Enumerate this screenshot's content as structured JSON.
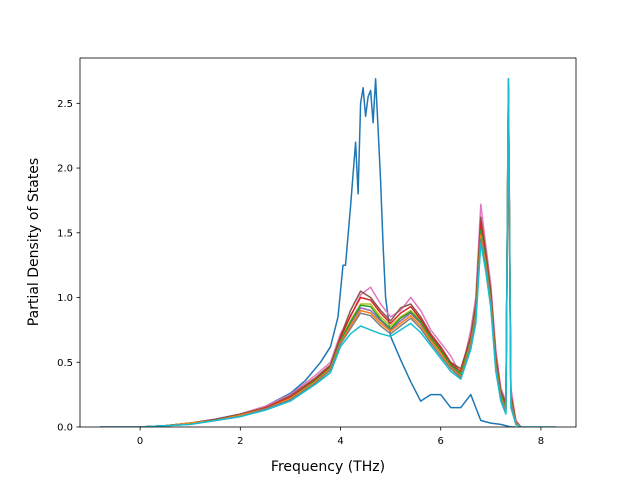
{
  "chart_data": {
    "type": "line",
    "title": "",
    "xlabel": "Frequency (THz)",
    "ylabel": "Partial Density of States",
    "xlim": [
      -1.2,
      8.7
    ],
    "ylim": [
      0,
      2.85
    ],
    "xticks": [
      0,
      2,
      4,
      6,
      8
    ],
    "yticks": [
      0.0,
      0.5,
      1.0,
      1.5,
      2.0,
      2.5
    ],
    "xtick_labels": [
      "0",
      "2",
      "4",
      "6",
      "8"
    ],
    "ytick_labels": [
      "0.0",
      "0.5",
      "1.0",
      "1.5",
      "2.0",
      "2.5"
    ],
    "grid": false,
    "legend": "none",
    "series": [
      {
        "color": "#1f77b4",
        "x": [
          -0.8,
          0.0,
          0.5,
          1.0,
          1.5,
          2.0,
          2.5,
          3.0,
          3.3,
          3.6,
          3.8,
          3.95,
          4.05,
          4.1,
          4.2,
          4.3,
          4.35,
          4.4,
          4.45,
          4.5,
          4.55,
          4.6,
          4.65,
          4.7,
          4.75,
          4.8,
          4.85,
          4.9,
          5.0,
          5.2,
          5.4,
          5.6,
          5.8,
          6.0,
          6.2,
          6.4,
          6.6,
          6.8,
          7.0,
          7.2,
          7.4,
          7.5
        ],
        "y": [
          0.0,
          0.0,
          0.01,
          0.03,
          0.06,
          0.1,
          0.16,
          0.26,
          0.36,
          0.5,
          0.62,
          0.85,
          1.25,
          1.25,
          1.7,
          2.2,
          1.8,
          2.5,
          2.62,
          2.4,
          2.55,
          2.6,
          2.35,
          2.69,
          2.3,
          1.9,
          1.4,
          1.0,
          0.7,
          0.52,
          0.35,
          0.2,
          0.25,
          0.25,
          0.15,
          0.15,
          0.25,
          0.05,
          0.03,
          0.02,
          0.0,
          0.0
        ]
      },
      {
        "color": "#e377c2",
        "x": [
          0.0,
          0.5,
          1.0,
          1.5,
          2.0,
          2.5,
          3.0,
          3.5,
          3.8,
          4.0,
          4.2,
          4.4,
          4.6,
          4.8,
          5.0,
          5.2,
          5.4,
          5.6,
          5.8,
          6.0,
          6.2,
          6.4,
          6.6,
          6.7,
          6.8,
          6.9,
          7.0,
          7.1,
          7.2,
          7.3,
          7.35,
          7.4,
          7.5,
          7.6
        ],
        "y": [
          0.0,
          0.01,
          0.03,
          0.06,
          0.1,
          0.16,
          0.25,
          0.4,
          0.5,
          0.72,
          0.85,
          1.02,
          1.08,
          0.95,
          0.85,
          0.9,
          1.0,
          0.9,
          0.75,
          0.65,
          0.55,
          0.4,
          0.75,
          1.0,
          1.72,
          1.4,
          1.1,
          0.6,
          0.3,
          0.2,
          2.69,
          0.3,
          0.05,
          0.0
        ]
      },
      {
        "color": "#8c564b",
        "x": [
          0.0,
          0.5,
          1.0,
          1.5,
          2.0,
          2.5,
          3.0,
          3.5,
          3.8,
          4.0,
          4.2,
          4.4,
          4.6,
          4.8,
          5.0,
          5.2,
          5.4,
          5.6,
          5.8,
          6.0,
          6.2,
          6.4,
          6.6,
          6.7,
          6.8,
          6.9,
          7.0,
          7.1,
          7.2,
          7.3,
          7.35,
          7.4,
          7.5,
          7.6
        ],
        "y": [
          0.0,
          0.01,
          0.03,
          0.06,
          0.1,
          0.15,
          0.24,
          0.38,
          0.48,
          0.7,
          0.9,
          1.05,
          1.0,
          0.9,
          0.82,
          0.92,
          0.95,
          0.85,
          0.72,
          0.62,
          0.5,
          0.45,
          0.7,
          0.95,
          1.62,
          1.35,
          1.05,
          0.55,
          0.28,
          0.18,
          2.65,
          0.25,
          0.04,
          0.0
        ]
      },
      {
        "color": "#bcbd22",
        "x": [
          0.0,
          0.5,
          1.0,
          1.5,
          2.0,
          2.5,
          3.0,
          3.5,
          3.8,
          4.0,
          4.2,
          4.4,
          4.6,
          4.8,
          5.0,
          5.2,
          5.4,
          5.6,
          5.8,
          6.0,
          6.2,
          6.4,
          6.6,
          6.7,
          6.8,
          6.9,
          7.0,
          7.1,
          7.2,
          7.3,
          7.35,
          7.4,
          7.5,
          7.6
        ],
        "y": [
          0.0,
          0.01,
          0.03,
          0.05,
          0.09,
          0.15,
          0.23,
          0.37,
          0.46,
          0.68,
          0.82,
          0.95,
          0.95,
          0.85,
          0.78,
          0.85,
          0.9,
          0.82,
          0.7,
          0.6,
          0.48,
          0.42,
          0.68,
          0.9,
          1.55,
          1.3,
          1.0,
          0.5,
          0.25,
          0.15,
          2.6,
          0.22,
          0.03,
          0.0
        ]
      },
      {
        "color": "#9467bd",
        "x": [
          0.0,
          0.5,
          1.0,
          1.5,
          2.0,
          2.5,
          3.0,
          3.5,
          3.8,
          4.0,
          4.2,
          4.4,
          4.6,
          4.8,
          5.0,
          5.2,
          5.4,
          5.6,
          5.8,
          6.0,
          6.2,
          6.4,
          6.6,
          6.7,
          6.8,
          6.9,
          7.0,
          7.1,
          7.2,
          7.3,
          7.35,
          7.4,
          7.5,
          7.6
        ],
        "y": [
          0.0,
          0.01,
          0.03,
          0.05,
          0.09,
          0.14,
          0.22,
          0.36,
          0.45,
          0.66,
          0.8,
          0.92,
          0.9,
          0.82,
          0.75,
          0.82,
          0.88,
          0.8,
          0.68,
          0.58,
          0.47,
          0.4,
          0.66,
          0.88,
          1.5,
          1.28,
          0.98,
          0.48,
          0.24,
          0.14,
          2.55,
          0.2,
          0.03,
          0.0
        ]
      },
      {
        "color": "#d62728",
        "x": [
          0.0,
          0.5,
          1.0,
          1.5,
          2.0,
          2.5,
          3.0,
          3.5,
          3.8,
          4.0,
          4.2,
          4.4,
          4.6,
          4.8,
          5.0,
          5.2,
          5.4,
          5.6,
          5.8,
          6.0,
          6.2,
          6.4,
          6.6,
          6.7,
          6.8,
          6.9,
          7.0,
          7.1,
          7.2,
          7.3,
          7.35,
          7.4,
          7.5,
          7.6
        ],
        "y": [
          0.0,
          0.01,
          0.03,
          0.05,
          0.09,
          0.15,
          0.23,
          0.37,
          0.47,
          0.69,
          0.86,
          1.0,
          0.98,
          0.88,
          0.8,
          0.88,
          0.93,
          0.83,
          0.71,
          0.61,
          0.49,
          0.43,
          0.69,
          0.92,
          1.58,
          1.32,
          1.02,
          0.52,
          0.26,
          0.16,
          2.62,
          0.23,
          0.04,
          0.0
        ]
      },
      {
        "color": "#2ca02c",
        "x": [
          0.0,
          0.5,
          1.0,
          1.5,
          2.0,
          2.5,
          3.0,
          3.5,
          3.8,
          4.0,
          4.2,
          4.4,
          4.6,
          4.8,
          5.0,
          5.2,
          5.4,
          5.6,
          5.8,
          6.0,
          6.2,
          6.4,
          6.6,
          6.7,
          6.8,
          6.9,
          7.0,
          7.1,
          7.2,
          7.3,
          7.35,
          7.4,
          7.5,
          7.6
        ],
        "y": [
          0.0,
          0.01,
          0.03,
          0.05,
          0.09,
          0.14,
          0.22,
          0.36,
          0.46,
          0.67,
          0.81,
          0.94,
          0.93,
          0.83,
          0.76,
          0.84,
          0.89,
          0.81,
          0.69,
          0.59,
          0.48,
          0.41,
          0.67,
          0.89,
          1.52,
          1.29,
          0.99,
          0.49,
          0.25,
          0.15,
          2.58,
          0.21,
          0.03,
          0.0
        ]
      },
      {
        "color": "#ff7f0e",
        "x": [
          0.0,
          0.5,
          1.0,
          1.5,
          2.0,
          2.5,
          3.0,
          3.5,
          3.8,
          4.0,
          4.2,
          4.4,
          4.6,
          4.8,
          5.0,
          5.2,
          5.4,
          5.6,
          5.8,
          6.0,
          6.2,
          6.4,
          6.6,
          6.7,
          6.8,
          6.9,
          7.0,
          7.1,
          7.2,
          7.3,
          7.35,
          7.4,
          7.5,
          7.6
        ],
        "y": [
          0.0,
          0.01,
          0.03,
          0.05,
          0.09,
          0.14,
          0.22,
          0.35,
          0.45,
          0.65,
          0.78,
          0.9,
          0.88,
          0.8,
          0.74,
          0.8,
          0.86,
          0.78,
          0.67,
          0.57,
          0.46,
          0.39,
          0.65,
          0.86,
          1.48,
          1.25,
          0.96,
          0.47,
          0.23,
          0.13,
          2.52,
          0.19,
          0.03,
          0.0
        ]
      },
      {
        "color": "#7f7f7f",
        "x": [
          0.0,
          0.5,
          1.0,
          1.5,
          2.0,
          2.5,
          3.0,
          3.5,
          3.8,
          4.0,
          4.2,
          4.4,
          4.6,
          4.8,
          5.0,
          5.2,
          5.4,
          5.6,
          5.8,
          6.0,
          6.2,
          6.4,
          6.6,
          6.7,
          6.8,
          6.9,
          7.0,
          7.1,
          7.2,
          7.3,
          7.35,
          7.4,
          7.5,
          7.6
        ],
        "y": [
          0.0,
          0.01,
          0.02,
          0.05,
          0.08,
          0.14,
          0.21,
          0.34,
          0.44,
          0.64,
          0.76,
          0.88,
          0.86,
          0.78,
          0.72,
          0.78,
          0.84,
          0.76,
          0.65,
          0.55,
          0.45,
          0.38,
          0.63,
          0.84,
          1.45,
          1.22,
          0.94,
          0.45,
          0.22,
          0.12,
          2.5,
          0.18,
          0.02,
          0.0
        ]
      },
      {
        "color": "#17becf",
        "x": [
          0.0,
          0.5,
          1.0,
          1.5,
          2.0,
          2.5,
          3.0,
          3.5,
          3.8,
          4.0,
          4.2,
          4.4,
          4.6,
          4.8,
          5.0,
          5.2,
          5.4,
          5.6,
          5.8,
          6.0,
          6.2,
          6.4,
          6.6,
          6.7,
          6.8,
          6.9,
          7.0,
          7.1,
          7.2,
          7.3,
          7.35,
          7.4,
          7.5,
          7.6,
          8.3
        ],
        "y": [
          0.0,
          0.01,
          0.02,
          0.05,
          0.08,
          0.13,
          0.2,
          0.33,
          0.42,
          0.62,
          0.72,
          0.78,
          0.75,
          0.72,
          0.7,
          0.75,
          0.8,
          0.73,
          0.63,
          0.53,
          0.43,
          0.37,
          0.6,
          0.8,
          1.42,
          1.2,
          0.92,
          0.43,
          0.2,
          0.1,
          2.69,
          0.15,
          0.02,
          0.0,
          0.0
        ]
      }
    ]
  }
}
